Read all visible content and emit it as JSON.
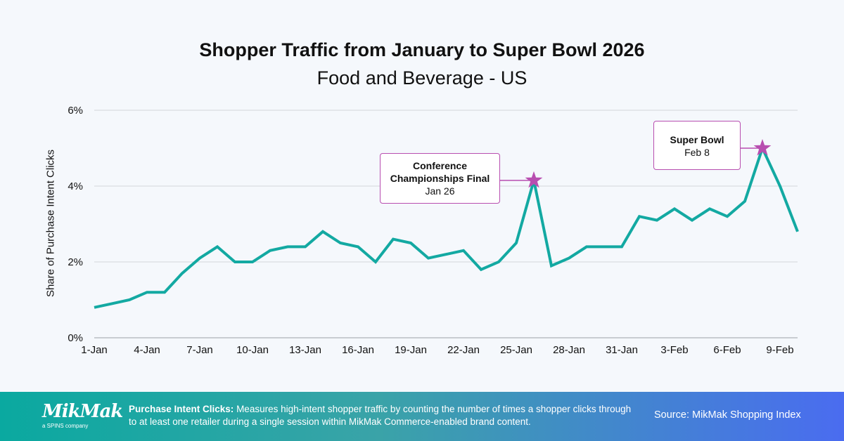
{
  "chart_data": {
    "type": "line",
    "title": "Shopper Traffic from January to Super Bowl 2026",
    "subtitle": "Food and Beverage - US",
    "xlabel": "",
    "ylabel": "Share of Purchase Intent Clicks",
    "ylim": [
      0,
      6
    ],
    "yticks": [
      "0%",
      "2%",
      "4%",
      "6%"
    ],
    "ytick_values": [
      0,
      2,
      4,
      6
    ],
    "grid": true,
    "line_color": "#13a9a2",
    "x": [
      "1-Jan",
      "2-Jan",
      "3-Jan",
      "4-Jan",
      "5-Jan",
      "6-Jan",
      "7-Jan",
      "8-Jan",
      "9-Jan",
      "10-Jan",
      "11-Jan",
      "12-Jan",
      "13-Jan",
      "14-Jan",
      "15-Jan",
      "16-Jan",
      "17-Jan",
      "18-Jan",
      "19-Jan",
      "20-Jan",
      "21-Jan",
      "22-Jan",
      "23-Jan",
      "24-Jan",
      "25-Jan",
      "26-Jan",
      "27-Jan",
      "28-Jan",
      "29-Jan",
      "30-Jan",
      "31-Jan",
      "1-Feb",
      "2-Feb",
      "3-Feb",
      "4-Feb",
      "5-Feb",
      "6-Feb",
      "7-Feb",
      "8-Feb",
      "9-Feb",
      "10-Feb"
    ],
    "xticks": [
      "1-Jan",
      "4-Jan",
      "7-Jan",
      "10-Jan",
      "13-Jan",
      "16-Jan",
      "19-Jan",
      "22-Jan",
      "25-Jan",
      "28-Jan",
      "31-Jan",
      "3-Feb",
      "6-Feb",
      "9-Feb"
    ],
    "values": [
      0.8,
      0.9,
      1.0,
      1.2,
      1.2,
      1.7,
      2.1,
      2.4,
      2.0,
      2.0,
      2.3,
      2.4,
      2.4,
      2.8,
      2.5,
      2.4,
      2.0,
      2.6,
      2.5,
      2.1,
      2.2,
      2.3,
      1.8,
      2.0,
      2.5,
      4.15,
      1.9,
      2.1,
      2.4,
      2.4,
      2.4,
      3.2,
      3.1,
      3.4,
      3.1,
      3.4,
      3.2,
      3.6,
      5.0,
      4.0,
      2.8
    ],
    "annotations": [
      {
        "title": "Conference Championships Final",
        "date": "Jan 26",
        "x": "26-Jan",
        "marker": "star",
        "color": "#b84eb0"
      },
      {
        "title": "Super Bowl",
        "date": "Feb 8",
        "x": "8-Feb",
        "marker": "star",
        "color": "#b84eb0"
      }
    ]
  },
  "footer": {
    "logo": "MikMak",
    "logo_sub": "a SPINS company",
    "definition_term": "Purchase Intent Clicks:",
    "definition": " Measures high-intent shopper traffic by counting the number of times a shopper clicks through to at least one retailer during a single session within MikMak Commerce-enabled brand content.",
    "source": "Source: MikMak Shopping Index"
  }
}
